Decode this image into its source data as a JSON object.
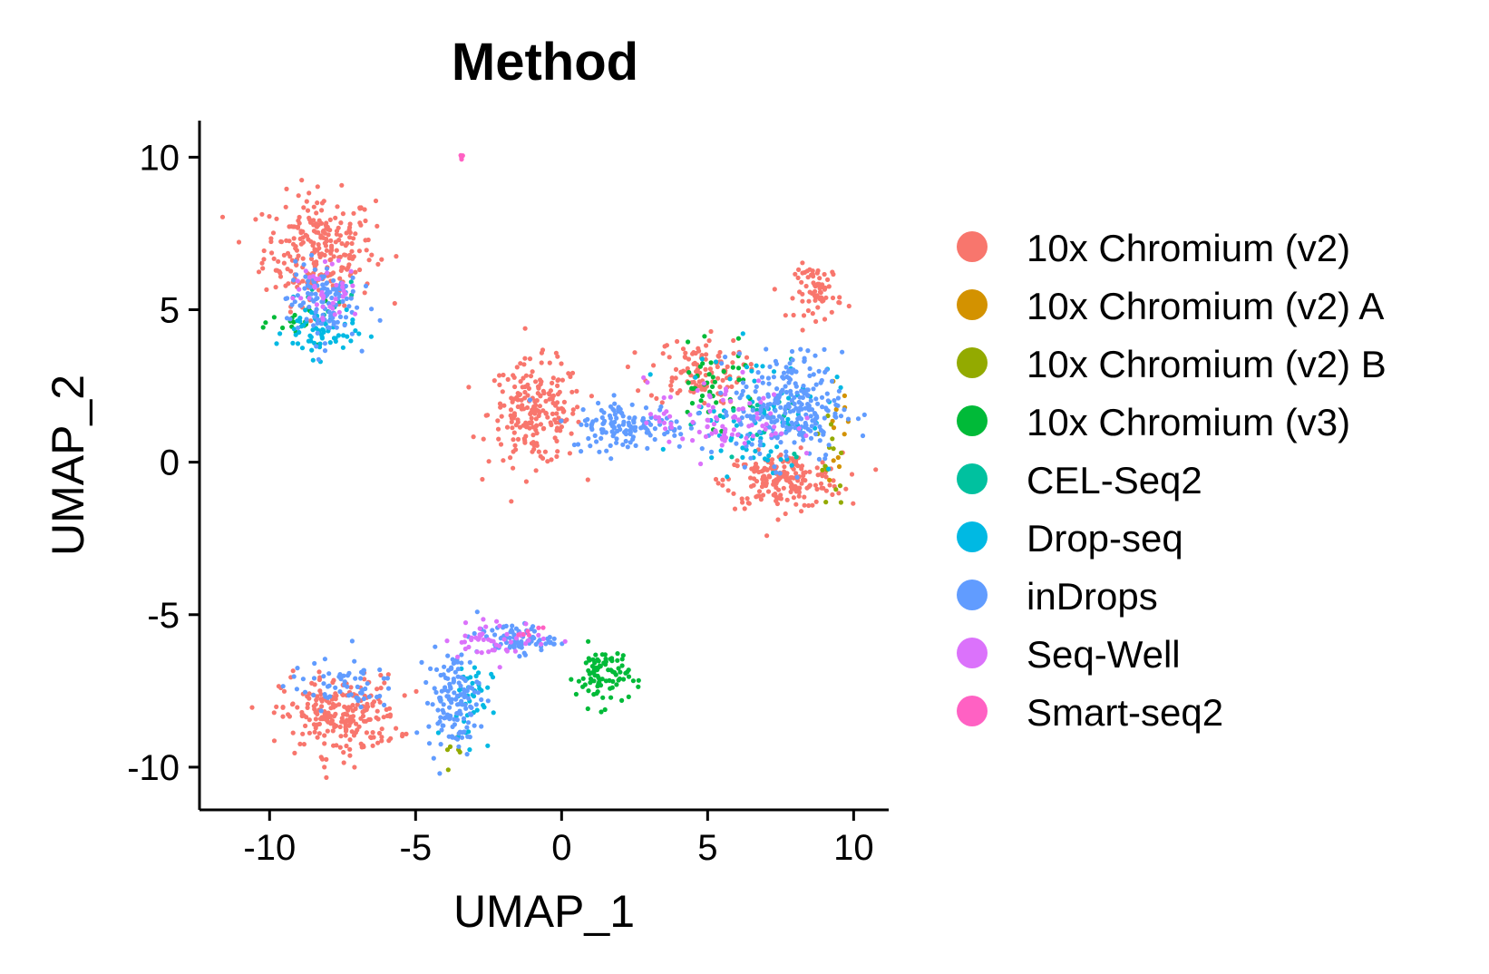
{
  "chart_data": {
    "type": "scatter",
    "title": "Method",
    "xlabel": "UMAP_1",
    "ylabel": "UMAP_2",
    "xlim": [
      -12.4,
      11.2
    ],
    "ylim": [
      -11.4,
      11.2
    ],
    "xticks": [
      -10,
      -5,
      0,
      5,
      10
    ],
    "yticks": [
      10,
      5,
      0,
      -5,
      -10
    ],
    "xtick_labels": [
      "-10",
      "-5",
      "0",
      "5",
      "10"
    ],
    "ytick_labels": [
      "10",
      "5",
      "0",
      "-5",
      "-10"
    ],
    "grid": false,
    "legend_position": "right",
    "series": [
      {
        "name": "10x Chromium (v2)",
        "color": "#F8766D",
        "clusters": [
          {
            "cx": -8.3,
            "cy": 7.0,
            "rx": 1.9,
            "ry": 1.8,
            "n": 260
          },
          {
            "cx": -0.9,
            "cy": 1.6,
            "rx": 1.6,
            "ry": 1.7,
            "n": 220
          },
          {
            "cx": 7.6,
            "cy": -0.6,
            "rx": 2.0,
            "ry": 0.9,
            "n": 200
          },
          {
            "cx": 4.6,
            "cy": 3.0,
            "rx": 1.6,
            "ry": 1.1,
            "n": 110
          },
          {
            "cx": -7.6,
            "cy": -8.3,
            "rx": 2.0,
            "ry": 1.3,
            "n": 240
          },
          {
            "cx": 8.8,
            "cy": 5.6,
            "rx": 0.8,
            "ry": 0.9,
            "n": 70
          }
        ]
      },
      {
        "name": "10x Chromium (v2) A",
        "color": "#D39200",
        "clusters": [
          {
            "cx": 9.4,
            "cy": 1.0,
            "rx": 0.5,
            "ry": 1.5,
            "n": 12
          }
        ]
      },
      {
        "name": "10x Chromium (v2) B",
        "color": "#93AA00",
        "clusters": [
          {
            "cx": 9.3,
            "cy": 0.0,
            "rx": 0.6,
            "ry": 1.6,
            "n": 15
          },
          {
            "cx": -3.5,
            "cy": -9.5,
            "rx": 0.6,
            "ry": 0.4,
            "n": 6
          }
        ]
      },
      {
        "name": "10x Chromium (v3)",
        "color": "#00BA38",
        "clusters": [
          {
            "cx": 1.4,
            "cy": -7.0,
            "rx": 0.9,
            "ry": 1.0,
            "n": 90
          },
          {
            "cx": 5.2,
            "cy": 2.5,
            "rx": 1.5,
            "ry": 1.2,
            "n": 40
          },
          {
            "cx": -8.9,
            "cy": 4.6,
            "rx": 1.0,
            "ry": 0.6,
            "n": 20
          }
        ]
      },
      {
        "name": "CEL-Seq2",
        "color": "#00C19F",
        "clusters": [
          {
            "cx": 7.0,
            "cy": 1.2,
            "rx": 2.0,
            "ry": 1.5,
            "n": 20
          },
          {
            "cx": -8.2,
            "cy": 5.0,
            "rx": 1.2,
            "ry": 1.0,
            "n": 10
          }
        ]
      },
      {
        "name": "Drop-seq",
        "color": "#00B9E3",
        "clusters": [
          {
            "cx": -8.3,
            "cy": 4.3,
            "rx": 1.2,
            "ry": 0.9,
            "n": 70
          },
          {
            "cx": 6.8,
            "cy": 1.6,
            "rx": 2.5,
            "ry": 2.0,
            "n": 80
          },
          {
            "cx": -3.2,
            "cy": -7.8,
            "rx": 0.8,
            "ry": 1.4,
            "n": 40
          }
        ]
      },
      {
        "name": "inDrops",
        "color": "#619CFF",
        "clusters": [
          {
            "cx": 7.8,
            "cy": 1.8,
            "rx": 1.8,
            "ry": 1.8,
            "n": 260
          },
          {
            "cx": 2.3,
            "cy": 1.2,
            "rx": 2.0,
            "ry": 0.8,
            "n": 140
          },
          {
            "cx": -3.7,
            "cy": -7.8,
            "rx": 0.9,
            "ry": 1.6,
            "n": 140
          },
          {
            "cx": -1.6,
            "cy": -5.8,
            "rx": 1.3,
            "ry": 0.5,
            "n": 80
          },
          {
            "cx": -8.2,
            "cy": 5.3,
            "rx": 1.2,
            "ry": 1.3,
            "n": 120
          },
          {
            "cx": -7.5,
            "cy": -7.3,
            "rx": 1.8,
            "ry": 0.8,
            "n": 60
          }
        ]
      },
      {
        "name": "Seq-Well",
        "color": "#DB72FB",
        "clusters": [
          {
            "cx": 5.4,
            "cy": 1.4,
            "rx": 2.5,
            "ry": 1.3,
            "n": 90
          },
          {
            "cx": -8.0,
            "cy": 5.6,
            "rx": 1.1,
            "ry": 0.9,
            "n": 40
          },
          {
            "cx": -2.2,
            "cy": -5.8,
            "rx": 1.8,
            "ry": 0.6,
            "n": 50
          }
        ]
      },
      {
        "name": "Smart-seq2",
        "color": "#FF61C3",
        "clusters": [
          {
            "cx": -3.4,
            "cy": 10.0,
            "rx": 0.1,
            "ry": 0.1,
            "n": 4
          },
          {
            "cx": -1.0,
            "cy": -5.4,
            "rx": 0.6,
            "ry": 0.3,
            "n": 6
          }
        ]
      }
    ]
  }
}
